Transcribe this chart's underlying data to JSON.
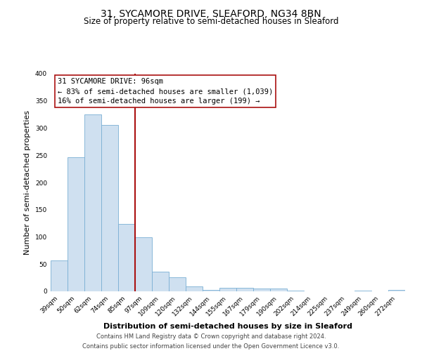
{
  "title": "31, SYCAMORE DRIVE, SLEAFORD, NG34 8BN",
  "subtitle": "Size of property relative to semi-detached houses in Sleaford",
  "xlabel": "Distribution of semi-detached houses by size in Sleaford",
  "ylabel": "Number of semi-detached properties",
  "categories": [
    "39sqm",
    "50sqm",
    "62sqm",
    "74sqm",
    "85sqm",
    "97sqm",
    "109sqm",
    "120sqm",
    "132sqm",
    "144sqm",
    "155sqm",
    "167sqm",
    "179sqm",
    "190sqm",
    "202sqm",
    "214sqm",
    "225sqm",
    "237sqm",
    "249sqm",
    "260sqm",
    "272sqm"
  ],
  "values": [
    57,
    246,
    325,
    306,
    124,
    100,
    36,
    26,
    9,
    3,
    7,
    7,
    5,
    5,
    1,
    0,
    0,
    0,
    1,
    0,
    3
  ],
  "bar_color": "#cfe0f0",
  "bar_edge_color": "#7aafd4",
  "vline_x_index": 5,
  "vline_color": "#aa1111",
  "annotation_title": "31 SYCAMORE DRIVE: 96sqm",
  "annotation_line1": "← 83% of semi-detached houses are smaller (1,039)",
  "annotation_line2": "16% of semi-detached houses are larger (199) →",
  "annotation_box_color": "#ffffff",
  "annotation_box_edge": "#aa1111",
  "ylim": [
    0,
    400
  ],
  "yticks": [
    0,
    50,
    100,
    150,
    200,
    250,
    300,
    350,
    400
  ],
  "footer_line1": "Contains HM Land Registry data © Crown copyright and database right 2024.",
  "footer_line2": "Contains public sector information licensed under the Open Government Licence v3.0.",
  "bg_color": "#ffffff",
  "plot_bg_color": "#ffffff",
  "title_fontsize": 10,
  "subtitle_fontsize": 8.5,
  "axis_label_fontsize": 8,
  "tick_fontsize": 6.5,
  "footer_fontsize": 6,
  "annot_fontsize": 7.5
}
